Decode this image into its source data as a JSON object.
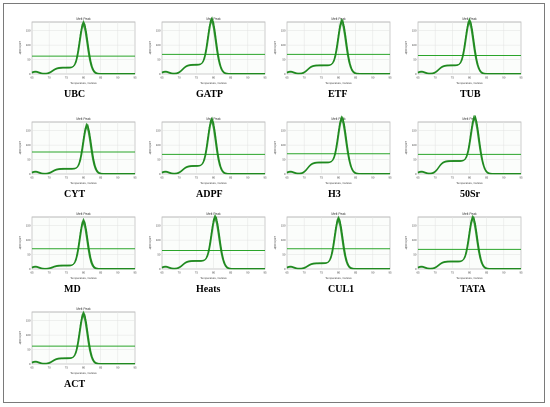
{
  "panel_title": "Melt Peak",
  "x_axis_label": "Temperature, Celsius",
  "y_axis_label": "-d(RFU)/dT",
  "line_color": "#1f8a1f",
  "threshold_color": "#2aa52a",
  "chart_data": [
    {
      "type": "line",
      "gene": "UBC",
      "x_ticks": [
        65,
        70,
        75,
        80,
        85,
        90,
        95
      ],
      "y_ticks": [
        0,
        50,
        100,
        150
      ],
      "x_range": [
        65,
        95
      ],
      "y_range": [
        0,
        180
      ],
      "peak_x": 80,
      "peak_y": 162,
      "threshold": 62,
      "shoulder_y": 22
    },
    {
      "type": "line",
      "gene": "GATP",
      "x_ticks": [
        65,
        70,
        75,
        80,
        85,
        90,
        95
      ],
      "y_ticks": [
        0,
        50,
        100,
        150
      ],
      "x_range": [
        65,
        95
      ],
      "y_range": [
        0,
        180
      ],
      "peak_x": 79.5,
      "peak_y": 165,
      "threshold": 68,
      "shoulder_y": 32
    },
    {
      "type": "line",
      "gene": "ETF",
      "x_ticks": [
        65,
        70,
        75,
        80,
        85,
        90,
        95
      ],
      "y_ticks": [
        0,
        50,
        100,
        150
      ],
      "x_range": [
        65,
        95
      ],
      "y_range": [
        0,
        180
      ],
      "peak_x": 81,
      "peak_y": 162,
      "threshold": 68,
      "shoulder_y": 30
    },
    {
      "type": "line",
      "gene": "TUB",
      "x_ticks": [
        65,
        70,
        75,
        80,
        85,
        90,
        95
      ],
      "y_ticks": [
        0,
        50,
        100,
        150
      ],
      "x_range": [
        65,
        95
      ],
      "y_range": [
        0,
        180
      ],
      "peak_x": 80,
      "peak_y": 162,
      "threshold": 64,
      "shoulder_y": 30
    },
    {
      "type": "line",
      "gene": "CYT",
      "x_ticks": [
        65,
        70,
        75,
        80,
        85,
        90,
        95
      ],
      "y_ticks": [
        0,
        50,
        100,
        150
      ],
      "x_range": [
        65,
        95
      ],
      "y_range": [
        0,
        180
      ],
      "peak_x": 81,
      "peak_y": 158,
      "threshold": 76,
      "shoulder_y": 18
    },
    {
      "type": "line",
      "gene": "ADPF",
      "x_ticks": [
        65,
        70,
        75,
        80,
        85,
        90,
        95
      ],
      "y_ticks": [
        0,
        50,
        100,
        150
      ],
      "x_range": [
        65,
        95
      ],
      "y_range": [
        0,
        180
      ],
      "peak_x": 79.5,
      "peak_y": 168,
      "threshold": 68,
      "shoulder_y": 28
    },
    {
      "type": "line",
      "gene": "H3",
      "x_ticks": [
        65,
        70,
        75,
        80,
        85,
        90,
        95
      ],
      "y_ticks": [
        0,
        50,
        100,
        150
      ],
      "x_range": [
        65,
        95
      ],
      "y_range": [
        0,
        180
      ],
      "peak_x": 81,
      "peak_y": 162,
      "threshold": 70,
      "shoulder_y": 40
    },
    {
      "type": "line",
      "gene": "50Sr",
      "x_ticks": [
        65,
        70,
        75,
        80,
        85,
        90,
        95
      ],
      "y_ticks": [
        0,
        50,
        100,
        150
      ],
      "x_range": [
        65,
        95
      ],
      "y_range": [
        0,
        180
      ],
      "peak_x": 81.5,
      "peak_y": 160,
      "threshold": 68,
      "shoulder_y": 45
    },
    {
      "type": "line",
      "gene": "MD",
      "x_ticks": [
        65,
        70,
        75,
        80,
        85,
        90,
        95
      ],
      "y_ticks": [
        0,
        50,
        100,
        150
      ],
      "x_range": [
        65,
        95
      ],
      "y_range": [
        0,
        180
      ],
      "peak_x": 80,
      "peak_y": 162,
      "threshold": 70,
      "shoulder_y": 12
    },
    {
      "type": "line",
      "gene": "Heats",
      "x_ticks": [
        65,
        70,
        75,
        80,
        85,
        90,
        95
      ],
      "y_ticks": [
        0,
        50,
        100,
        150
      ],
      "x_range": [
        65,
        95
      ],
      "y_range": [
        0,
        180
      ],
      "peak_x": 80.5,
      "peak_y": 160,
      "threshold": 64,
      "shoulder_y": 28
    },
    {
      "type": "line",
      "gene": "CUL1",
      "x_ticks": [
        65,
        70,
        75,
        80,
        85,
        90,
        95
      ],
      "y_ticks": [
        0,
        50,
        100,
        150
      ],
      "x_range": [
        65,
        95
      ],
      "y_range": [
        0,
        180
      ],
      "peak_x": 80,
      "peak_y": 162,
      "threshold": 70,
      "shoulder_y": 20
    },
    {
      "type": "line",
      "gene": "TATA",
      "x_ticks": [
        65,
        70,
        75,
        80,
        85,
        90,
        95
      ],
      "y_ticks": [
        0,
        50,
        100,
        150
      ],
      "x_range": [
        65,
        95
      ],
      "y_range": [
        0,
        180
      ],
      "peak_x": 81,
      "peak_y": 160,
      "threshold": 68,
      "shoulder_y": 26
    },
    {
      "type": "line",
      "gene": "ACT",
      "x_ticks": [
        65,
        70,
        75,
        80,
        85,
        90,
        95
      ],
      "y_ticks": [
        0,
        50,
        100,
        150
      ],
      "x_range": [
        65,
        95
      ],
      "y_range": [
        0,
        180
      ],
      "peak_x": 80,
      "peak_y": 162,
      "threshold": 62,
      "shoulder_y": 20
    }
  ]
}
